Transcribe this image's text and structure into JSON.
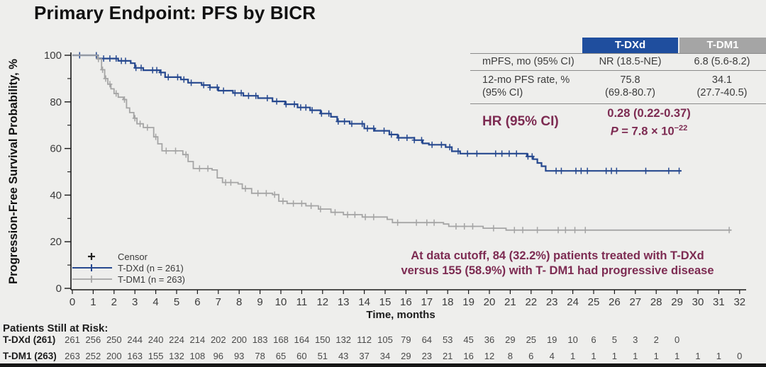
{
  "title": "Primary Endpoint: PFS by BICR",
  "colors": {
    "tdxd_blue": "#27498f",
    "tdm1_gray": "#a5a5a5",
    "header_blue": "#1f4e9e",
    "header_gray": "#a5a5a5",
    "maroon": "#7d2b52",
    "background": "#eeeeec",
    "axis": "#1a1a1a"
  },
  "stats_table": {
    "header": {
      "tdxd": "T-DXd",
      "tdm1": "T-DM1"
    },
    "row1": {
      "label": "mPFS, mo (95% CI)",
      "tdxd": "NR (18.5-NE)",
      "tdm1": "6.8 (5.6-8.2)"
    },
    "row2": {
      "label1": "12-mo PFS rate, %",
      "label2": "(95% CI)",
      "tdxd1": "75.8",
      "tdxd2": "(69.8-80.7)",
      "tdm11": "34.1",
      "tdm12": "(27.7-40.5)"
    },
    "hr": {
      "label": "HR (95% CI)",
      "value": "0.28 (0.22-0.37)",
      "p_italic": "P",
      "p_rest": " = 7.8 × 10",
      "p_exp": "−22"
    }
  },
  "legend": {
    "censor": "Censor",
    "tdxd": "T-DXd (n = 261)",
    "tdm1": "T-DM1 (n = 263)"
  },
  "annotation": {
    "line1": "At data cutoff, 84 (32.2%) patients treated with T-DXd",
    "line2": "versus 155 (58.9%) with T- DM1 had progressive disease"
  },
  "axes": {
    "y_ticks": [
      0,
      20,
      40,
      60,
      80,
      100
    ],
    "y_minor_ticks": [
      10,
      30,
      50,
      70,
      90
    ],
    "x_ticks": [
      0,
      1,
      2,
      3,
      4,
      5,
      6,
      7,
      8,
      9,
      10,
      11,
      12,
      13,
      14,
      15,
      16,
      17,
      18,
      19,
      20,
      21,
      22,
      23,
      24,
      25,
      26,
      27,
      28,
      29,
      30,
      31,
      32
    ]
  },
  "chart_data": {
    "type": "line",
    "subtype": "kaplan-meier-step",
    "title": "Primary Endpoint: PFS by BICR",
    "xlabel": "Time, months",
    "ylabel": "Progression-Free Survival Probability, %",
    "xlim": [
      0,
      32
    ],
    "ylim": [
      0,
      100
    ],
    "grid": false,
    "legend_position": "lower-left",
    "series": [
      {
        "name": "T-DXd (n = 261)",
        "color": "#27498f",
        "median_pfs": "NR (18.5-NE)",
        "pfs_12mo": "75.8 (69.8-80.7)",
        "steps": [
          [
            0,
            100
          ],
          [
            1.2,
            98.6
          ],
          [
            2.2,
            97.6
          ],
          [
            2.8,
            96.6
          ],
          [
            3.0,
            94.6
          ],
          [
            3.4,
            93.6
          ],
          [
            4.2,
            92.6
          ],
          [
            4.45,
            90.6
          ],
          [
            5.2,
            89.6
          ],
          [
            5.55,
            88.2
          ],
          [
            6.2,
            87.2
          ],
          [
            6.6,
            86.2
          ],
          [
            7.0,
            84.8
          ],
          [
            7.7,
            83.8
          ],
          [
            8.2,
            82.6
          ],
          [
            8.9,
            81.6
          ],
          [
            9.6,
            80.2
          ],
          [
            10.2,
            79.0
          ],
          [
            10.8,
            77.6
          ],
          [
            11.4,
            76.4
          ],
          [
            11.9,
            75.0
          ],
          [
            12.4,
            73.6
          ],
          [
            12.7,
            71.6
          ],
          [
            13.3,
            70.6
          ],
          [
            14.0,
            68.6
          ],
          [
            14.5,
            67.6
          ],
          [
            15.2,
            66.0
          ],
          [
            15.6,
            64.6
          ],
          [
            16.4,
            63.6
          ],
          [
            16.8,
            62.2
          ],
          [
            17.1,
            61.6
          ],
          [
            17.9,
            60.6
          ],
          [
            18.2,
            58.8
          ],
          [
            18.6,
            57.8
          ],
          [
            21.8,
            56.6
          ],
          [
            22.1,
            55.4
          ],
          [
            22.3,
            53.8
          ],
          [
            22.5,
            52.4
          ],
          [
            22.7,
            50.4
          ],
          [
            29.2,
            50.4
          ]
        ],
        "censor_months": [
          0.35,
          1.15,
          1.5,
          1.8,
          2.1,
          2.35,
          2.55,
          3.05,
          3.3,
          3.85,
          4.05,
          4.25,
          4.6,
          5.05,
          5.35,
          5.7,
          6.3,
          6.6,
          6.95,
          7.25,
          7.8,
          8.1,
          8.45,
          8.8,
          9.35,
          9.8,
          10.25,
          10.65,
          10.95,
          11.2,
          11.5,
          11.95,
          12.3,
          12.75,
          13.05,
          13.4,
          13.9,
          14.15,
          14.45,
          14.95,
          15.3,
          15.65,
          16.05,
          16.4,
          16.75,
          17.25,
          17.7,
          18.1,
          18.5,
          18.95,
          19.4,
          20.3,
          20.6,
          20.95,
          21.3,
          21.85,
          22.05,
          23.2,
          23.45,
          24.15,
          24.4,
          24.7,
          25.6,
          25.85,
          26.1,
          27.5,
          28.6,
          29.1
        ]
      },
      {
        "name": "T-DM1 (n = 263)",
        "color": "#a5a5a5",
        "median_pfs": "6.8 (5.6-8.2)",
        "pfs_12mo": "34.1 (27.7-40.5)",
        "steps": [
          [
            0,
            100
          ],
          [
            1.2,
            98.4
          ],
          [
            1.4,
            93.8
          ],
          [
            1.55,
            90.0
          ],
          [
            1.7,
            87.6
          ],
          [
            1.85,
            85.6
          ],
          [
            2.0,
            83.6
          ],
          [
            2.2,
            82.0
          ],
          [
            2.45,
            81.0
          ],
          [
            2.6,
            77.4
          ],
          [
            2.75,
            75.4
          ],
          [
            2.95,
            73.0
          ],
          [
            3.1,
            70.6
          ],
          [
            3.4,
            69.0
          ],
          [
            3.9,
            65.0
          ],
          [
            4.1,
            62.0
          ],
          [
            4.3,
            59.0
          ],
          [
            5.3,
            57.4
          ],
          [
            5.55,
            54.4
          ],
          [
            5.8,
            51.4
          ],
          [
            6.7,
            50.8
          ],
          [
            6.95,
            47.4
          ],
          [
            7.2,
            45.4
          ],
          [
            7.95,
            44.8
          ],
          [
            8.15,
            42.8
          ],
          [
            8.6,
            40.8
          ],
          [
            9.6,
            40.2
          ],
          [
            9.9,
            37.4
          ],
          [
            10.3,
            36.4
          ],
          [
            11.2,
            35.4
          ],
          [
            11.8,
            34.0
          ],
          [
            12.4,
            32.6
          ],
          [
            13.0,
            31.6
          ],
          [
            13.9,
            30.6
          ],
          [
            15.1,
            29.6
          ],
          [
            15.35,
            28.2
          ],
          [
            17.8,
            27.6
          ],
          [
            18.05,
            26.6
          ],
          [
            19.7,
            25.8
          ],
          [
            20.8,
            25.0
          ],
          [
            31.6,
            25.0
          ]
        ],
        "censor_months": [
          1.25,
          1.45,
          1.6,
          1.8,
          2.1,
          2.5,
          3.0,
          3.25,
          3.6,
          4.0,
          4.5,
          4.95,
          5.45,
          6.1,
          6.5,
          7.35,
          7.6,
          8.3,
          8.9,
          9.3,
          9.7,
          10.1,
          10.6,
          11.0,
          11.45,
          11.9,
          12.6,
          13.2,
          13.55,
          14.05,
          14.45,
          15.6,
          16.5,
          17.0,
          17.35,
          18.4,
          18.8,
          19.2,
          20.2,
          21.2,
          21.6,
          22.3,
          23.3,
          23.65,
          24.1,
          24.6,
          31.5
        ],
        "censor_end_plain": true
      }
    ],
    "hazard_ratio": "0.28 (0.22-0.37)",
    "p_value": "7.8 × 10−22",
    "at_risk": {
      "title": "Patients Still at Risk:",
      "rows": [
        {
          "label": "T-DXd (261)",
          "values": [
            261,
            256,
            250,
            244,
            240,
            224,
            214,
            202,
            200,
            183,
            168,
            164,
            150,
            132,
            112,
            105,
            79,
            64,
            53,
            45,
            36,
            29,
            25,
            19,
            10,
            6,
            5,
            3,
            2,
            0
          ]
        },
        {
          "label": "T-DM1 (263)",
          "values": [
            263,
            252,
            200,
            163,
            155,
            132,
            108,
            96,
            93,
            78,
            65,
            60,
            51,
            43,
            37,
            34,
            29,
            23,
            21,
            16,
            12,
            8,
            6,
            4,
            1,
            1,
            1,
            1,
            1,
            1,
            1,
            1,
            0
          ]
        }
      ]
    }
  }
}
